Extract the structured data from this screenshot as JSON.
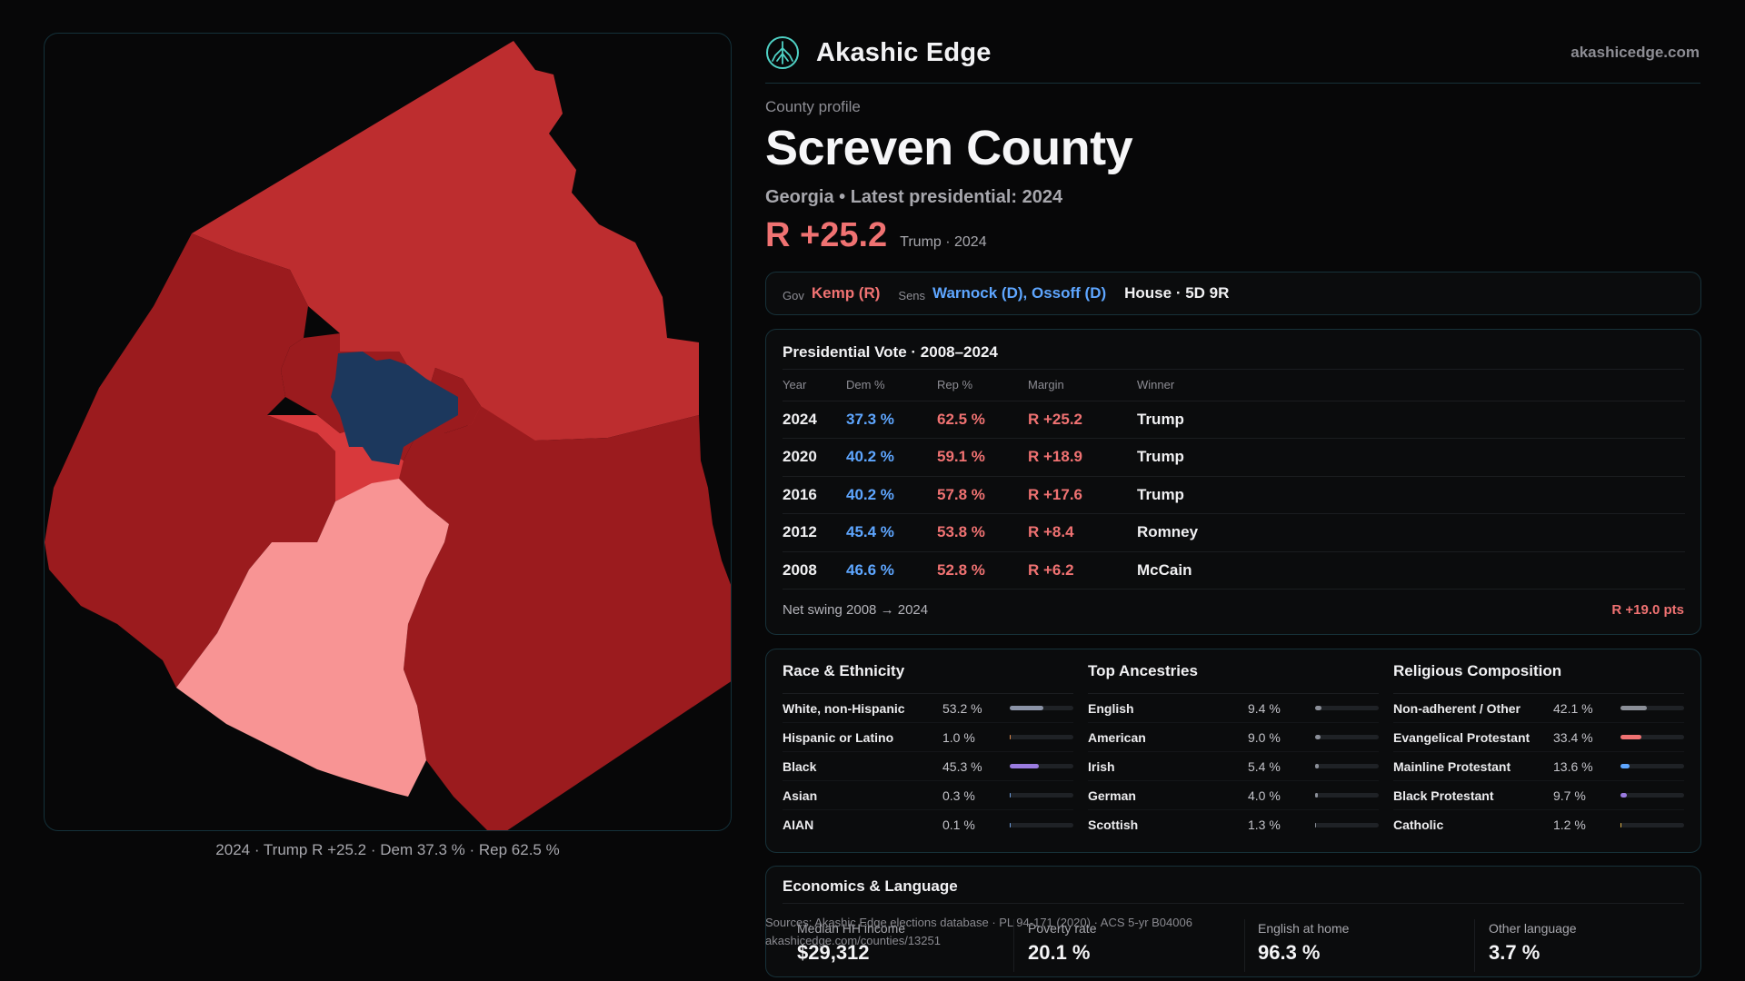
{
  "brand": {
    "name": "Akashic Edge",
    "site": "akashicedge.com",
    "logo_icon": "tree-of-life-icon",
    "accent": "#4fd1c5"
  },
  "profile": {
    "kicker": "County profile",
    "title": "Screven County",
    "subtitle": "Georgia • Latest presidential: 2024",
    "margin": "R +25.2",
    "margin_note": "Trump · 2024"
  },
  "officials": {
    "gov_label": "Gov",
    "gov": "Kemp (R)",
    "sens_label": "Sens",
    "sens": "Warnock (D), Ossoff (D)",
    "house": "House · 5D 9R"
  },
  "presidential": {
    "title": "Presidential Vote · 2008–2024",
    "headers": [
      "Year",
      "Dem %",
      "Rep %",
      "Margin",
      "Winner"
    ],
    "rows": [
      {
        "year": "2024",
        "dem": "37.3 %",
        "rep": "62.5 %",
        "margin": "R +25.2",
        "winner": "Trump"
      },
      {
        "year": "2020",
        "dem": "40.2 %",
        "rep": "59.1 %",
        "margin": "R +18.9",
        "winner": "Trump"
      },
      {
        "year": "2016",
        "dem": "40.2 %",
        "rep": "57.8 %",
        "margin": "R +17.6",
        "winner": "Trump"
      },
      {
        "year": "2012",
        "dem": "45.4 %",
        "rep": "53.8 %",
        "margin": "R +8.4",
        "winner": "Romney"
      },
      {
        "year": "2008",
        "dem": "46.6 %",
        "rep": "52.8 %",
        "margin": "R +6.2",
        "winner": "McCain"
      }
    ],
    "swing_label": "Net swing 2008 → 2024",
    "swing_value": "R +19.0 pts"
  },
  "demographics": [
    {
      "title": "Race & Ethnicity",
      "items": [
        {
          "label": "White, non-Hispanic",
          "value": "53.2 %",
          "pct": 53.2,
          "color": "#8b93a7"
        },
        {
          "label": "Hispanic or Latino",
          "value": "1.0 %",
          "pct": 1.0,
          "color": "#e0894a"
        },
        {
          "label": "Black",
          "value": "45.3 %",
          "pct": 45.3,
          "color": "#9a7be0"
        },
        {
          "label": "Asian",
          "value": "0.3 %",
          "pct": 0.3,
          "color": "#6fa0e0"
        },
        {
          "label": "AIAN",
          "value": "0.1 %",
          "pct": 0.1,
          "color": "#6fa0e0"
        }
      ]
    },
    {
      "title": "Top Ancestries",
      "items": [
        {
          "label": "English",
          "value": "9.4 %",
          "pct": 9.4,
          "color": "#8b8f98"
        },
        {
          "label": "American",
          "value": "9.0 %",
          "pct": 9.0,
          "color": "#8b8f98"
        },
        {
          "label": "Irish",
          "value": "5.4 %",
          "pct": 5.4,
          "color": "#8b8f98"
        },
        {
          "label": "German",
          "value": "4.0 %",
          "pct": 4.0,
          "color": "#8b8f98"
        },
        {
          "label": "Scottish",
          "value": "1.3 %",
          "pct": 1.3,
          "color": "#8b8f98"
        }
      ]
    },
    {
      "title": "Religious Composition",
      "items": [
        {
          "label": "Non-adherent / Other",
          "value": "42.1 %",
          "pct": 42.1,
          "color": "#8b8f98"
        },
        {
          "label": "Evangelical Protestant",
          "value": "33.4 %",
          "pct": 33.4,
          "color": "#f07272"
        },
        {
          "label": "Mainline Protestant",
          "value": "13.6 %",
          "pct": 13.6,
          "color": "#5ea6ff"
        },
        {
          "label": "Black Protestant",
          "value": "9.7 %",
          "pct": 9.7,
          "color": "#9a7be0"
        },
        {
          "label": "Catholic",
          "value": "1.2 %",
          "pct": 1.2,
          "color": "#e0b44a"
        }
      ]
    }
  ],
  "economics": {
    "title": "Economics & Language",
    "stats": [
      {
        "label": "Median HH income",
        "value": "$29,312"
      },
      {
        "label": "Poverty rate",
        "value": "20.1 %"
      },
      {
        "label": "English at home",
        "value": "96.3 %"
      },
      {
        "label": "Other language",
        "value": "3.7 %"
      }
    ]
  },
  "sources": {
    "line1": "Sources: Akashic Edge elections database · PL 94-171 (2020) · ACS 5-yr B04006",
    "line2": "akashicedge.com/counties/13251"
  },
  "map": {
    "caption": "2024 · Trump R +25.2 · Dem 37.3 % · Rep 62.5 %",
    "colors": {
      "r_strong": "#bd2d2f",
      "r_darker": "#9b1b1e",
      "r_medium": "#d8393c",
      "r_light": "#f89494",
      "dem": "#1c385d"
    }
  }
}
